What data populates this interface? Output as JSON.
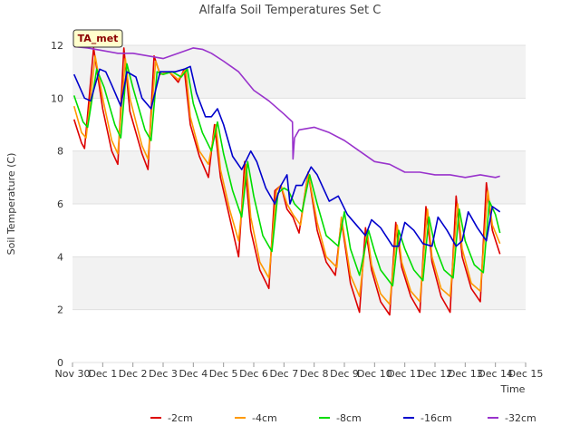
{
  "chart_data": {
    "type": "line",
    "title": "Alfalfa Soil Temperatures Set C",
    "xlabel": "Time",
    "ylabel": "Soil Temperature (C)",
    "xlim": [
      0,
      15
    ],
    "ylim": [
      0,
      12
    ],
    "x_ticks": [
      0,
      1,
      2,
      3,
      4,
      5,
      6,
      7,
      8,
      9,
      10,
      11,
      12,
      13,
      14,
      15
    ],
    "x_tick_labels": [
      "Nov 30",
      "Dec 1",
      "Dec 2",
      "Dec 3",
      "Dec 4",
      "Dec 5",
      "Dec 6",
      "Dec 7",
      "Dec 8",
      "Dec 9",
      "Dec 10",
      "Dec 11",
      "Dec 12",
      "Dec 13",
      "Dec 14",
      "Dec 15"
    ],
    "y_ticks": [
      0,
      2,
      4,
      6,
      8,
      10,
      12
    ],
    "y_tick_labels": [
      "0",
      "2",
      "4",
      "6",
      "8",
      "10",
      "12"
    ],
    "grid": "horizontal bands",
    "legend_position": "bottom",
    "annotation": "TA_met",
    "series": [
      {
        "name": "-2cm",
        "color": "#dd0000",
        "x": [
          0.05,
          0.3,
          0.4,
          0.7,
          1.0,
          1.3,
          1.5,
          1.7,
          1.9,
          2.3,
          2.5,
          2.7,
          2.9,
          3.2,
          3.5,
          3.7,
          3.9,
          4.2,
          4.5,
          4.7,
          4.9,
          5.2,
          5.5,
          5.7,
          5.9,
          6.2,
          6.5,
          6.7,
          6.9,
          7.1,
          7.3,
          7.5,
          7.8,
          8.1,
          8.4,
          8.7,
          8.9,
          9.2,
          9.5,
          9.7,
          9.9,
          10.2,
          10.5,
          10.7,
          10.9,
          11.2,
          11.5,
          11.7,
          11.9,
          12.2,
          12.5,
          12.7,
          12.9,
          13.2,
          13.5,
          13.7,
          13.9,
          14.15
        ],
        "y": [
          9.2,
          8.3,
          8.1,
          11.9,
          9.6,
          8.0,
          7.5,
          11.9,
          9.5,
          7.9,
          7.3,
          11.6,
          10.9,
          11.0,
          10.6,
          11.1,
          9.0,
          7.8,
          7.0,
          9.0,
          7.0,
          5.5,
          4.0,
          7.6,
          5.0,
          3.5,
          2.8,
          6.5,
          6.7,
          5.8,
          5.5,
          4.9,
          7.2,
          5.0,
          3.8,
          3.3,
          5.4,
          3.0,
          1.9,
          5.1,
          3.5,
          2.3,
          1.8,
          5.3,
          3.6,
          2.5,
          1.9,
          5.9,
          3.8,
          2.5,
          1.9,
          6.3,
          4.0,
          2.8,
          2.3,
          6.8,
          5.0,
          4.1
        ]
      },
      {
        "name": "-4cm",
        "color": "#ff9900",
        "x": [
          0.05,
          0.3,
          0.45,
          0.75,
          1.0,
          1.3,
          1.5,
          1.75,
          1.9,
          2.3,
          2.5,
          2.75,
          2.9,
          3.2,
          3.5,
          3.75,
          3.9,
          4.2,
          4.5,
          4.75,
          4.9,
          5.2,
          5.5,
          5.75,
          5.9,
          6.2,
          6.5,
          6.75,
          6.9,
          7.1,
          7.3,
          7.55,
          7.8,
          8.1,
          8.4,
          8.75,
          8.9,
          9.2,
          9.5,
          9.75,
          9.9,
          10.2,
          10.5,
          10.75,
          10.9,
          11.2,
          11.5,
          11.75,
          11.9,
          12.2,
          12.5,
          12.75,
          12.9,
          13.2,
          13.5,
          13.75,
          13.9,
          14.15
        ],
        "y": [
          9.7,
          8.7,
          8.5,
          11.6,
          10.0,
          8.4,
          7.9,
          11.5,
          10.0,
          8.2,
          7.7,
          11.4,
          10.9,
          11.0,
          10.7,
          11.1,
          9.3,
          8.0,
          7.5,
          9.0,
          7.3,
          5.8,
          4.6,
          7.5,
          5.5,
          3.8,
          3.2,
          6.5,
          6.7,
          6.0,
          5.6,
          5.2,
          7.2,
          5.3,
          4.0,
          3.6,
          5.5,
          3.3,
          2.5,
          5.0,
          3.7,
          2.6,
          2.2,
          5.2,
          3.8,
          2.7,
          2.3,
          5.8,
          4.0,
          2.8,
          2.5,
          6.0,
          4.3,
          3.0,
          2.7,
          6.5,
          5.2,
          4.5
        ]
      },
      {
        "name": "-8cm",
        "color": "#00dd00",
        "x": [
          0.05,
          0.35,
          0.5,
          0.8,
          1.05,
          1.4,
          1.6,
          1.8,
          2.0,
          2.4,
          2.6,
          2.8,
          3.0,
          3.3,
          3.6,
          3.8,
          4.0,
          4.3,
          4.6,
          4.8,
          5.0,
          5.3,
          5.6,
          5.8,
          6.0,
          6.3,
          6.6,
          6.8,
          7.0,
          7.15,
          7.35,
          7.6,
          7.85,
          8.1,
          8.4,
          8.8,
          9.0,
          9.2,
          9.5,
          9.8,
          10.0,
          10.2,
          10.6,
          10.8,
          11.0,
          11.3,
          11.6,
          11.8,
          12.0,
          12.3,
          12.6,
          12.8,
          13.0,
          13.3,
          13.6,
          13.8,
          14.0,
          14.15
        ],
        "y": [
          10.1,
          9.1,
          8.9,
          11.1,
          10.4,
          9.0,
          8.5,
          11.3,
          10.4,
          8.8,
          8.4,
          11.0,
          10.9,
          11.0,
          10.8,
          11.1,
          9.8,
          8.7,
          8.0,
          9.1,
          7.9,
          6.5,
          5.5,
          7.6,
          6.3,
          4.8,
          4.2,
          6.4,
          6.6,
          6.5,
          6.0,
          5.7,
          7.1,
          6.0,
          4.8,
          4.4,
          5.7,
          4.3,
          3.3,
          5.0,
          4.2,
          3.5,
          2.9,
          5.0,
          4.3,
          3.5,
          3.1,
          5.5,
          4.4,
          3.5,
          3.2,
          5.8,
          4.6,
          3.7,
          3.4,
          6.1,
          5.6,
          4.9
        ]
      },
      {
        "name": "-16cm",
        "color": "#0000cc",
        "x": [
          0.05,
          0.4,
          0.6,
          0.9,
          1.1,
          1.3,
          1.6,
          1.8,
          2.1,
          2.3,
          2.6,
          2.9,
          3.1,
          3.4,
          3.7,
          3.9,
          4.1,
          4.4,
          4.6,
          4.8,
          5.0,
          5.3,
          5.6,
          5.9,
          6.1,
          6.4,
          6.7,
          6.9,
          7.1,
          7.2,
          7.4,
          7.6,
          7.9,
          8.1,
          8.5,
          8.8,
          9.1,
          9.4,
          9.7,
          9.9,
          10.2,
          10.6,
          10.8,
          11.0,
          11.3,
          11.6,
          11.9,
          12.1,
          12.4,
          12.7,
          12.9,
          13.1,
          13.4,
          13.7,
          13.9,
          14.15
        ],
        "y": [
          10.9,
          10.0,
          9.9,
          11.1,
          11.0,
          10.5,
          9.7,
          11.0,
          10.8,
          10.0,
          9.6,
          11.0,
          11.0,
          11.0,
          11.1,
          11.2,
          10.2,
          9.3,
          9.3,
          9.6,
          9.0,
          7.8,
          7.3,
          8.0,
          7.6,
          6.6,
          6.0,
          6.7,
          7.1,
          6.0,
          6.7,
          6.7,
          7.4,
          7.1,
          6.1,
          6.3,
          5.6,
          5.2,
          4.8,
          5.4,
          5.1,
          4.4,
          4.4,
          5.3,
          5.0,
          4.5,
          4.4,
          5.5,
          5.0,
          4.4,
          4.6,
          5.7,
          5.1,
          4.6,
          5.9,
          5.7
        ]
      },
      {
        "name": "-32cm",
        "color": "#9933cc",
        "x": [
          0.05,
          0.5,
          1.0,
          1.5,
          2.0,
          2.5,
          3.0,
          3.5,
          4.0,
          4.3,
          4.6,
          5.0,
          5.5,
          6.0,
          6.5,
          7.0,
          7.28,
          7.3,
          7.35,
          7.5,
          8.0,
          8.5,
          9.0,
          9.5,
          10.0,
          10.5,
          11.0,
          11.5,
          12.0,
          12.5,
          13.0,
          13.5,
          14.0,
          14.15
        ],
        "y": [
          11.95,
          11.9,
          11.8,
          11.7,
          11.7,
          11.6,
          11.5,
          11.7,
          11.9,
          11.85,
          11.7,
          11.4,
          11.0,
          10.3,
          9.9,
          9.4,
          9.1,
          7.7,
          8.5,
          8.8,
          8.9,
          8.7,
          8.4,
          8.0,
          7.6,
          7.5,
          7.2,
          7.2,
          7.1,
          7.1,
          7.0,
          7.1,
          7.0,
          7.05
        ]
      }
    ]
  }
}
